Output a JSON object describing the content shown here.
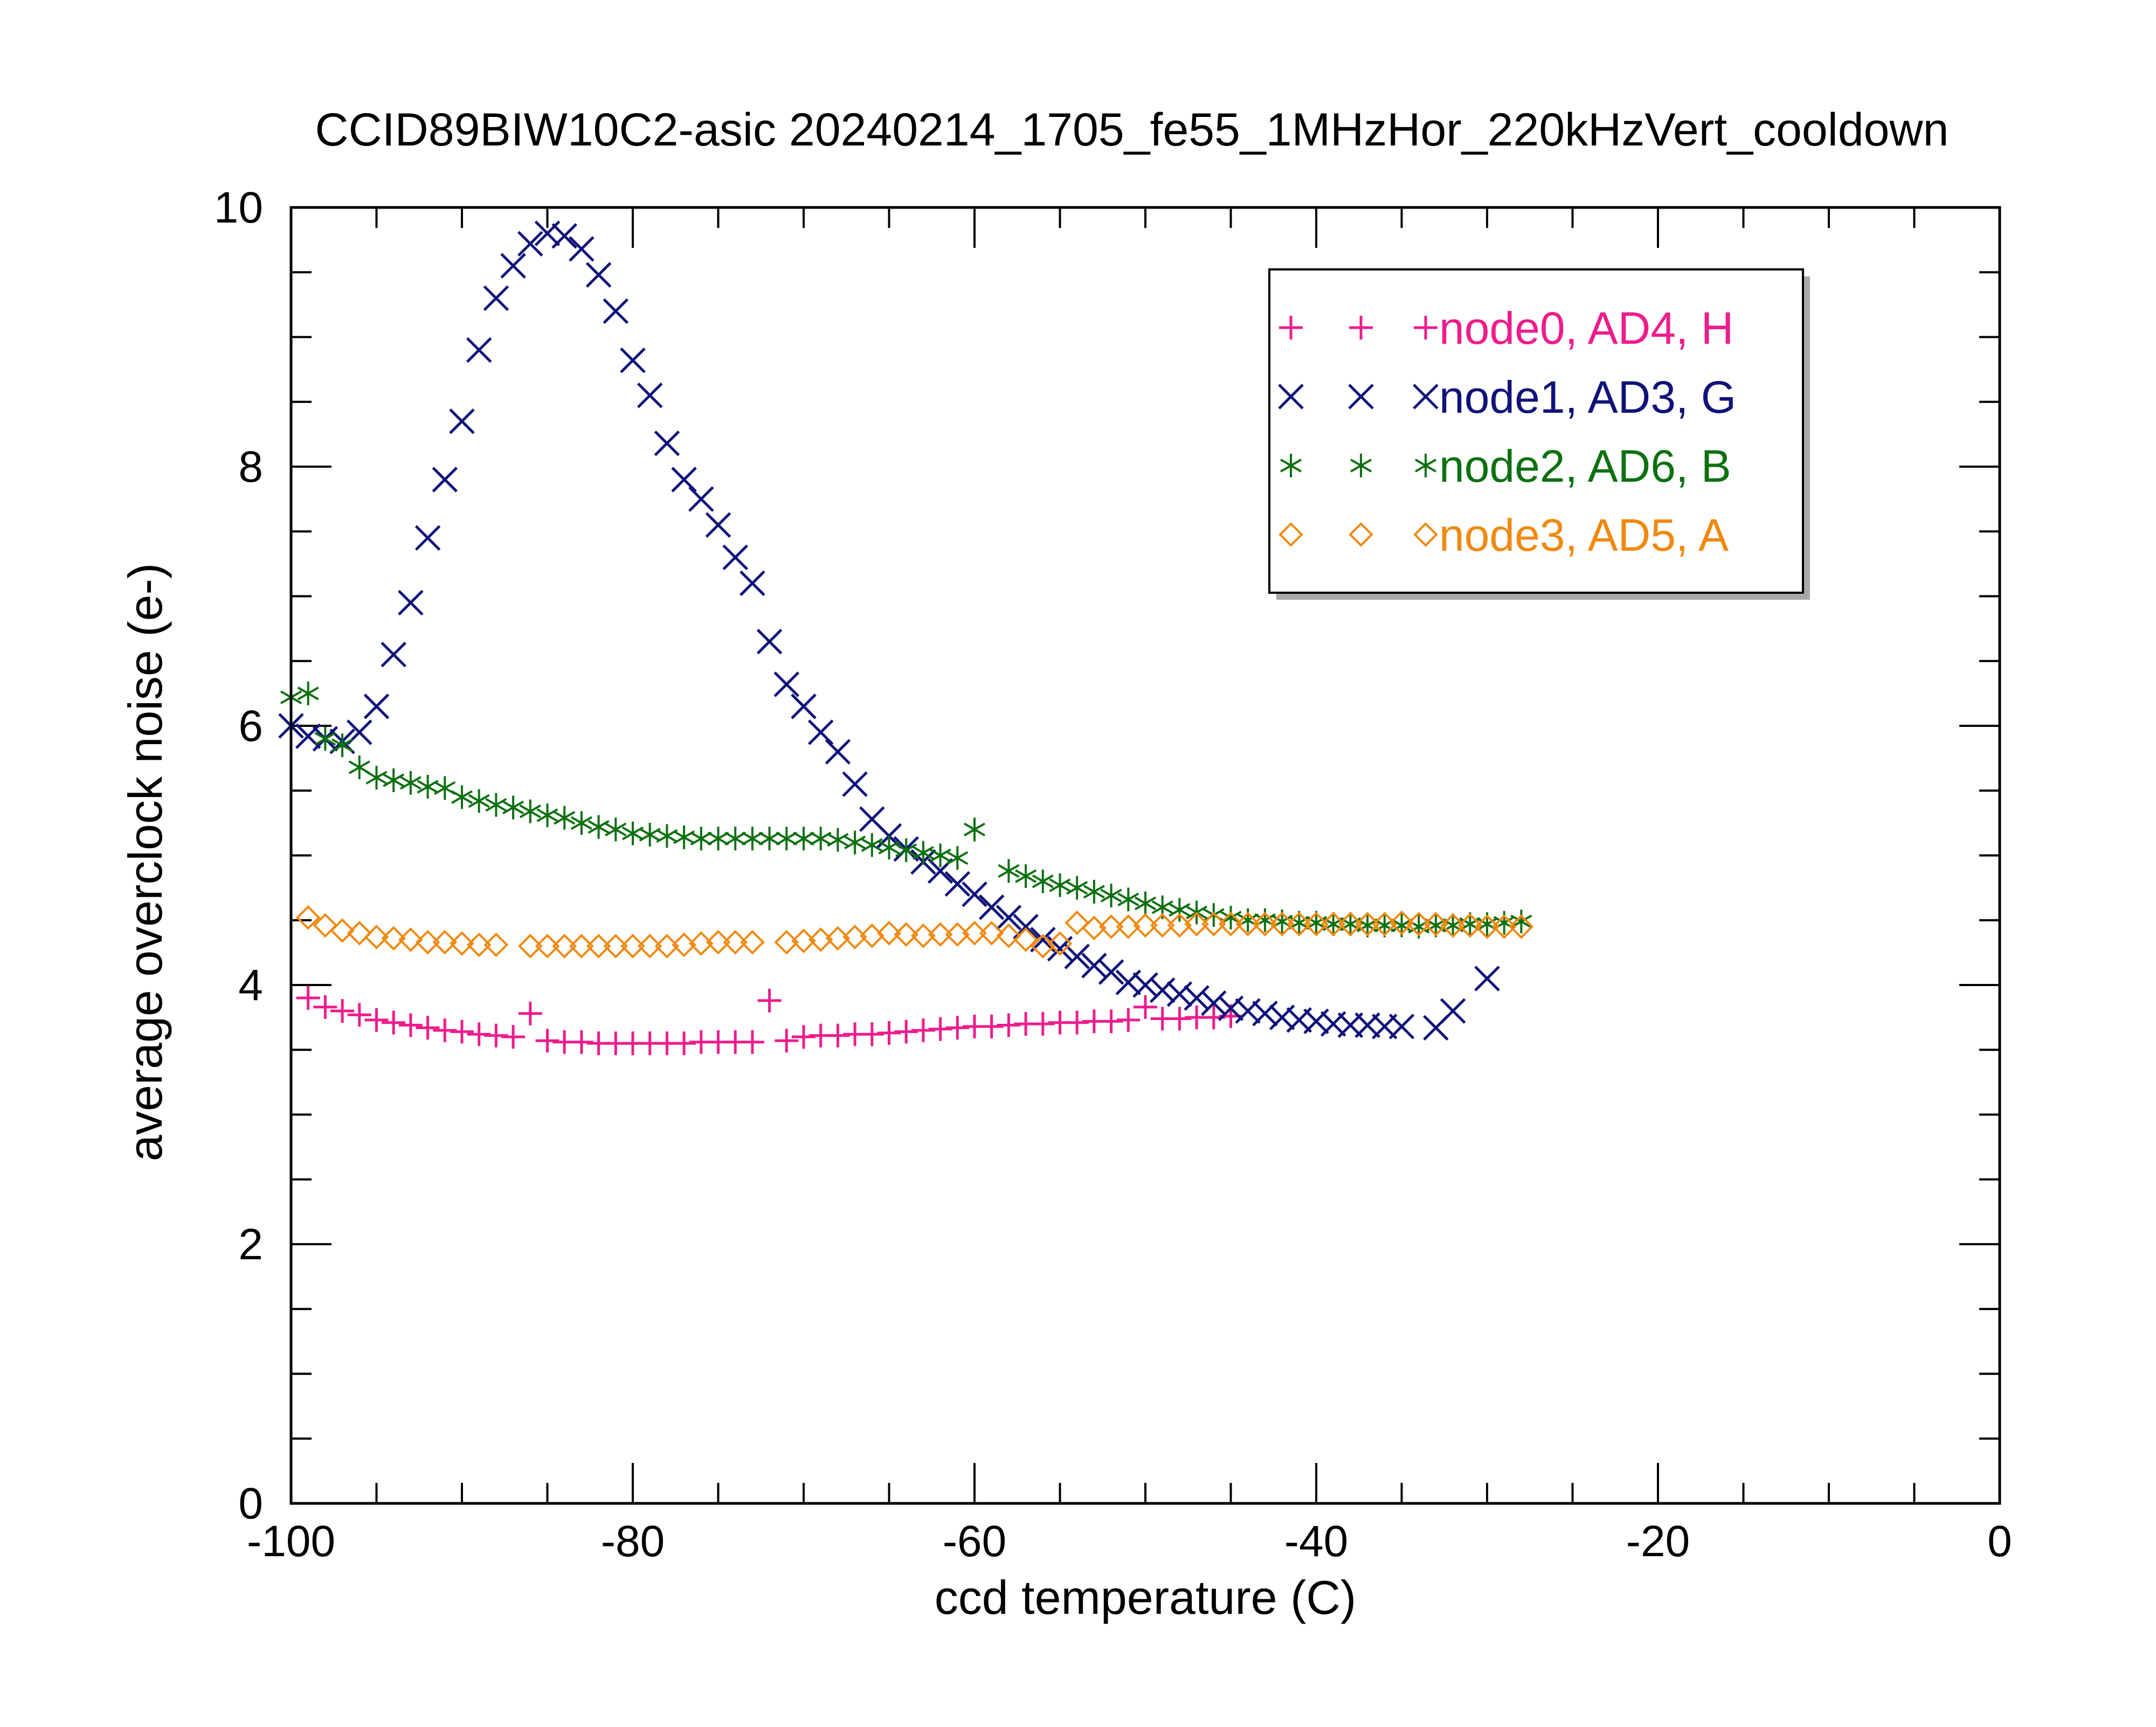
{
  "chart_data": {
    "type": "scatter",
    "title": "CCID89BIW10C2-asic 20240214_1705_fe55_1MHzHor_220kHzVert_cooldown",
    "xlabel": "ccd temperature (C)",
    "ylabel": "average overclock noise (e-)",
    "xlim": [
      -100,
      0
    ],
    "ylim": [
      0,
      10
    ],
    "x_ticks": [
      "-100",
      "-80",
      "-60",
      "-40",
      "-20",
      "0"
    ],
    "y_ticks": [
      "0",
      "2",
      "4",
      "6",
      "8",
      "10"
    ],
    "legend_position": "top-right",
    "series": [
      {
        "name": "node0, AD4, H",
        "marker": "plus",
        "color": "#ee1c8c",
        "points": [
          [
            -99,
            3.9
          ],
          [
            -98,
            3.83
          ],
          [
            -97,
            3.8
          ],
          [
            -96,
            3.77
          ],
          [
            -95,
            3.73
          ],
          [
            -94,
            3.71
          ],
          [
            -93,
            3.69
          ],
          [
            -92,
            3.67
          ],
          [
            -91,
            3.65
          ],
          [
            -90,
            3.64
          ],
          [
            -89,
            3.62
          ],
          [
            -88,
            3.61
          ],
          [
            -87,
            3.6
          ],
          [
            -86,
            3.78
          ],
          [
            -85,
            3.57
          ],
          [
            -84,
            3.56
          ],
          [
            -83,
            3.56
          ],
          [
            -82,
            3.55
          ],
          [
            -81,
            3.55
          ],
          [
            -80,
            3.55
          ],
          [
            -79,
            3.55
          ],
          [
            -78,
            3.55
          ],
          [
            -77,
            3.55
          ],
          [
            -76,
            3.56
          ],
          [
            -75,
            3.56
          ],
          [
            -74,
            3.56
          ],
          [
            -73,
            3.56
          ],
          [
            -72,
            3.88
          ],
          [
            -71,
            3.57
          ],
          [
            -70,
            3.6
          ],
          [
            -69,
            3.61
          ],
          [
            -68,
            3.61
          ],
          [
            -67,
            3.62
          ],
          [
            -66,
            3.62
          ],
          [
            -65,
            3.63
          ],
          [
            -64,
            3.64
          ],
          [
            -63,
            3.65
          ],
          [
            -62,
            3.66
          ],
          [
            -61,
            3.67
          ],
          [
            -60,
            3.68
          ],
          [
            -59,
            3.68
          ],
          [
            -58,
            3.69
          ],
          [
            -57,
            3.7
          ],
          [
            -56,
            3.7
          ],
          [
            -55,
            3.71
          ],
          [
            -54,
            3.71
          ],
          [
            -53,
            3.72
          ],
          [
            -52,
            3.72
          ],
          [
            -51,
            3.73
          ],
          [
            -50,
            3.83
          ],
          [
            -49,
            3.74
          ],
          [
            -48,
            3.74
          ],
          [
            -47,
            3.75
          ],
          [
            -46,
            3.75
          ],
          [
            -45,
            3.76
          ]
        ]
      },
      {
        "name": "node1, AD3, G",
        "marker": "cross",
        "color": "#10127a",
        "points": [
          [
            -100,
            6.0
          ],
          [
            -99,
            5.92
          ],
          [
            -98,
            5.9
          ],
          [
            -97,
            5.88
          ],
          [
            -96,
            5.95
          ],
          [
            -95,
            6.15
          ],
          [
            -94,
            6.55
          ],
          [
            -93,
            6.95
          ],
          [
            -92,
            7.45
          ],
          [
            -91,
            7.9
          ],
          [
            -90,
            8.35
          ],
          [
            -89,
            8.9
          ],
          [
            -88,
            9.3
          ],
          [
            -87,
            9.55
          ],
          [
            -86,
            9.72
          ],
          [
            -85,
            9.8
          ],
          [
            -84,
            9.78
          ],
          [
            -83,
            9.68
          ],
          [
            -82,
            9.48
          ],
          [
            -81,
            9.2
          ],
          [
            -80,
            8.82
          ],
          [
            -79,
            8.55
          ],
          [
            -78,
            8.18
          ],
          [
            -77,
            7.9
          ],
          [
            -76,
            7.75
          ],
          [
            -75,
            7.55
          ],
          [
            -74,
            7.3
          ],
          [
            -73,
            7.1
          ],
          [
            -72,
            6.65
          ],
          [
            -71,
            6.32
          ],
          [
            -70,
            6.15
          ],
          [
            -69,
            5.95
          ],
          [
            -68,
            5.8
          ],
          [
            -67,
            5.55
          ],
          [
            -66,
            5.28
          ],
          [
            -65,
            5.15
          ],
          [
            -64,
            5.05
          ],
          [
            -63,
            4.95
          ],
          [
            -62,
            4.88
          ],
          [
            -61,
            4.78
          ],
          [
            -60,
            4.7
          ],
          [
            -59,
            4.6
          ],
          [
            -58,
            4.52
          ],
          [
            -57,
            4.45
          ],
          [
            -56,
            4.35
          ],
          [
            -55,
            4.28
          ],
          [
            -54,
            4.22
          ],
          [
            -53,
            4.15
          ],
          [
            -52,
            4.1
          ],
          [
            -51,
            4.02
          ],
          [
            -50,
            4.0
          ],
          [
            -49,
            3.96
          ],
          [
            -48,
            3.93
          ],
          [
            -47,
            3.9
          ],
          [
            -46,
            3.86
          ],
          [
            -45,
            3.82
          ],
          [
            -44,
            3.8
          ],
          [
            -43,
            3.78
          ],
          [
            -42,
            3.75
          ],
          [
            -41,
            3.73
          ],
          [
            -40,
            3.72
          ],
          [
            -39,
            3.7
          ],
          [
            -38,
            3.69
          ],
          [
            -37,
            3.69
          ],
          [
            -36,
            3.68
          ],
          [
            -35,
            3.68
          ],
          [
            -33,
            3.67
          ],
          [
            -32,
            3.8
          ],
          [
            -30,
            4.05
          ]
        ]
      },
      {
        "name": "node2, AD6, B",
        "marker": "star",
        "color": "#0d7010",
        "points": [
          [
            -100,
            6.22
          ],
          [
            -99,
            6.25
          ],
          [
            -98,
            5.9
          ],
          [
            -97,
            5.85
          ],
          [
            -96,
            5.68
          ],
          [
            -95,
            5.6
          ],
          [
            -94,
            5.58
          ],
          [
            -93,
            5.56
          ],
          [
            -92,
            5.53
          ],
          [
            -91,
            5.52
          ],
          [
            -90,
            5.45
          ],
          [
            -89,
            5.42
          ],
          [
            -88,
            5.39
          ],
          [
            -87,
            5.37
          ],
          [
            -86,
            5.34
          ],
          [
            -85,
            5.31
          ],
          [
            -84,
            5.29
          ],
          [
            -83,
            5.25
          ],
          [
            -82,
            5.22
          ],
          [
            -81,
            5.2
          ],
          [
            -80,
            5.17
          ],
          [
            -79,
            5.16
          ],
          [
            -78,
            5.15
          ],
          [
            -77,
            5.14
          ],
          [
            -76,
            5.13
          ],
          [
            -75,
            5.13
          ],
          [
            -74,
            5.13
          ],
          [
            -73,
            5.13
          ],
          [
            -72,
            5.13
          ],
          [
            -71,
            5.13
          ],
          [
            -70,
            5.13
          ],
          [
            -69,
            5.13
          ],
          [
            -68,
            5.12
          ],
          [
            -67,
            5.1
          ],
          [
            -66,
            5.08
          ],
          [
            -65,
            5.06
          ],
          [
            -64,
            5.04
          ],
          [
            -63,
            5.02
          ],
          [
            -62,
            5.0
          ],
          [
            -61,
            4.98
          ],
          [
            -60,
            5.2
          ],
          [
            -58,
            4.88
          ],
          [
            -57,
            4.84
          ],
          [
            -56,
            4.8
          ],
          [
            -55,
            4.77
          ],
          [
            -54,
            4.75
          ],
          [
            -53,
            4.72
          ],
          [
            -52,
            4.69
          ],
          [
            -51,
            4.66
          ],
          [
            -50,
            4.63
          ],
          [
            -49,
            4.6
          ],
          [
            -48,
            4.58
          ],
          [
            -47,
            4.56
          ],
          [
            -46,
            4.54
          ],
          [
            -45,
            4.52
          ],
          [
            -44,
            4.5
          ],
          [
            -43,
            4.5
          ],
          [
            -42,
            4.49
          ],
          [
            -41,
            4.48
          ],
          [
            -40,
            4.48
          ],
          [
            -39,
            4.47
          ],
          [
            -38,
            4.47
          ],
          [
            -37,
            4.46
          ],
          [
            -36,
            4.46
          ],
          [
            -35,
            4.46
          ],
          [
            -34,
            4.45
          ],
          [
            -33,
            4.46
          ],
          [
            -32,
            4.46
          ],
          [
            -31,
            4.47
          ],
          [
            -30,
            4.47
          ],
          [
            -29,
            4.48
          ],
          [
            -28,
            4.49
          ]
        ]
      },
      {
        "name": "node3, AD5, A",
        "marker": "diamond",
        "color": "#f0890f",
        "points": [
          [
            -99,
            4.52
          ],
          [
            -98,
            4.46
          ],
          [
            -97,
            4.42
          ],
          [
            -96,
            4.4
          ],
          [
            -95,
            4.37
          ],
          [
            -94,
            4.36
          ],
          [
            -93,
            4.35
          ],
          [
            -92,
            4.33
          ],
          [
            -91,
            4.33
          ],
          [
            -90,
            4.32
          ],
          [
            -89,
            4.31
          ],
          [
            -88,
            4.31
          ],
          [
            -86,
            4.3
          ],
          [
            -85,
            4.3
          ],
          [
            -84,
            4.3
          ],
          [
            -83,
            4.3
          ],
          [
            -82,
            4.3
          ],
          [
            -81,
            4.3
          ],
          [
            -80,
            4.3
          ],
          [
            -79,
            4.3
          ],
          [
            -78,
            4.3
          ],
          [
            -77,
            4.31
          ],
          [
            -76,
            4.32
          ],
          [
            -75,
            4.33
          ],
          [
            -74,
            4.33
          ],
          [
            -73,
            4.33
          ],
          [
            -71,
            4.33
          ],
          [
            -70,
            4.34
          ],
          [
            -69,
            4.35
          ],
          [
            -68,
            4.36
          ],
          [
            -67,
            4.37
          ],
          [
            -66,
            4.38
          ],
          [
            -65,
            4.4
          ],
          [
            -64,
            4.39
          ],
          [
            -63,
            4.38
          ],
          [
            -62,
            4.39
          ],
          [
            -61,
            4.39
          ],
          [
            -60,
            4.4
          ],
          [
            -59,
            4.4
          ],
          [
            -58,
            4.38
          ],
          [
            -57,
            4.35
          ],
          [
            -56,
            4.3
          ],
          [
            -55,
            4.32
          ],
          [
            -54,
            4.48
          ],
          [
            -53,
            4.44
          ],
          [
            -52,
            4.45
          ],
          [
            -51,
            4.45
          ],
          [
            -50,
            4.46
          ],
          [
            -49,
            4.46
          ],
          [
            -48,
            4.46
          ],
          [
            -47,
            4.47
          ],
          [
            -46,
            4.47
          ],
          [
            -45,
            4.47
          ],
          [
            -44,
            4.47
          ],
          [
            -43,
            4.47
          ],
          [
            -42,
            4.47
          ],
          [
            -41,
            4.47
          ],
          [
            -40,
            4.47
          ],
          [
            -39,
            4.47
          ],
          [
            -38,
            4.47
          ],
          [
            -37,
            4.47
          ],
          [
            -36,
            4.47
          ],
          [
            -35,
            4.48
          ],
          [
            -34,
            4.47
          ],
          [
            -33,
            4.47
          ],
          [
            -32,
            4.46
          ],
          [
            -31,
            4.46
          ],
          [
            -30,
            4.45
          ],
          [
            -29,
            4.45
          ],
          [
            -28,
            4.45
          ]
        ]
      }
    ]
  }
}
